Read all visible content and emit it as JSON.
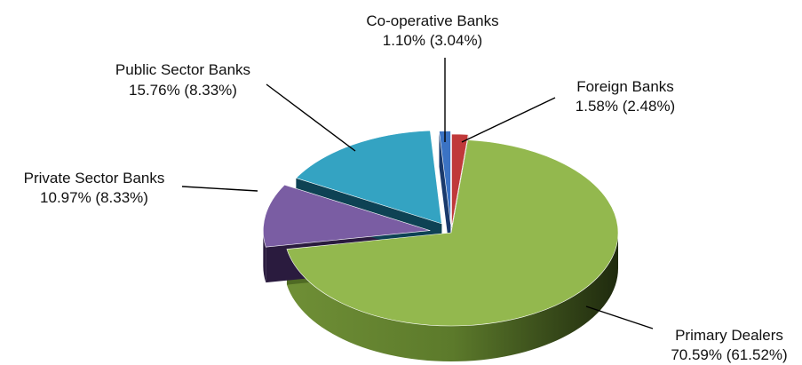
{
  "chart_data": {
    "type": "pie",
    "title": "",
    "style": "3d-exploded",
    "slices": [
      {
        "label": "Foreign Banks",
        "value": 1.58,
        "secondary": 2.48,
        "text": "1.58% (2.48%)",
        "color": "#c0393a",
        "side": "#7e2221"
      },
      {
        "label": "Primary Dealers",
        "value": 70.59,
        "secondary": 61.52,
        "text": "70.59% (61.52%)",
        "color": "#93b84e",
        "side": "#4f6a24"
      },
      {
        "label": "Private Sector Banks",
        "value": 10.97,
        "secondary": 8.33,
        "text": "10.97% (8.33%)",
        "color": "#7a5da3",
        "side": "#2a1b3e"
      },
      {
        "label": "Public Sector Banks",
        "value": 15.76,
        "secondary": 8.33,
        "text": "15.76% (8.33%)",
        "color": "#34a3c2",
        "side": "#0e4254"
      },
      {
        "label": "Co-operative Banks",
        "value": 1.1,
        "secondary": 3.04,
        "text": "1.10% (3.04%)",
        "color": "#3b73c4",
        "side": "#1a3a6c"
      }
    ]
  }
}
